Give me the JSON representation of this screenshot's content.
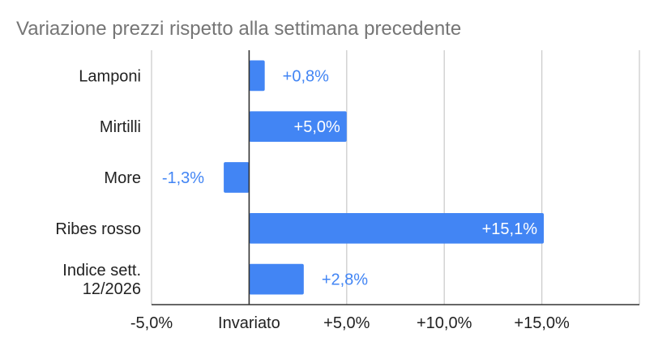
{
  "chart_data": {
    "type": "bar",
    "orientation": "horizontal",
    "title": "Variazione prezzi rispetto alla settimana precedente",
    "xlabel": "",
    "ylabel": "",
    "categories": [
      "Lamponi",
      "Mirtilli",
      "More",
      "Ribes rosso",
      "Indice sett.\n12/2026"
    ],
    "values": [
      0.8,
      5.0,
      -1.3,
      15.1,
      2.8
    ],
    "data_labels": [
      "+0,8%",
      "+5,0%",
      "-1,3%",
      "+15,1%",
      "+2,8%"
    ],
    "xlim": [
      -5,
      20
    ],
    "x_ticks": [
      -5,
      0,
      5,
      10,
      15,
      20
    ],
    "x_tick_labels": [
      "-5,0%",
      "Invariato",
      "+5,0%",
      "+10,0%",
      "+15,0%",
      ""
    ],
    "grid": "vertical",
    "legend": "none",
    "colors": {
      "bar": "#4285f4",
      "label_outside": "#4285f4",
      "label_inside": "#ffffff",
      "grid": "#cccccc",
      "axis": "#333333",
      "title": "#757575",
      "text": "#222222"
    }
  }
}
